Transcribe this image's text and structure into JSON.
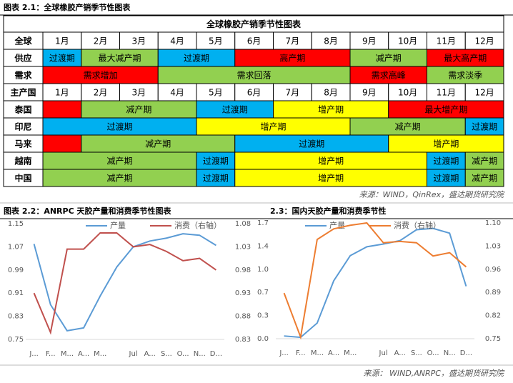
{
  "header": {
    "title": "图表 2.1：全球橡胶产销季节性图表"
  },
  "table": {
    "title": "全球橡胶产销季节性图表",
    "rows": [
      {
        "label": "全球",
        "cells": [
          {
            "text": "1月",
            "span": 1,
            "fill": "#ffffff"
          },
          {
            "text": "2月",
            "span": 1,
            "fill": "#ffffff"
          },
          {
            "text": "3月",
            "span": 1,
            "fill": "#ffffff"
          },
          {
            "text": "4月",
            "span": 1,
            "fill": "#ffffff"
          },
          {
            "text": "5月",
            "span": 1,
            "fill": "#ffffff"
          },
          {
            "text": "6月",
            "span": 1,
            "fill": "#ffffff"
          },
          {
            "text": "7月",
            "span": 1,
            "fill": "#ffffff"
          },
          {
            "text": "8月",
            "span": 1,
            "fill": "#ffffff"
          },
          {
            "text": "9月",
            "span": 1,
            "fill": "#ffffff"
          },
          {
            "text": "10月",
            "span": 1,
            "fill": "#ffffff"
          },
          {
            "text": "11月",
            "span": 1,
            "fill": "#ffffff"
          },
          {
            "text": "12月",
            "span": 1,
            "fill": "#ffffff"
          }
        ]
      },
      {
        "label": "供应",
        "cells": [
          {
            "text": "过渡期",
            "span": 1,
            "fill": "#00b0f0"
          },
          {
            "text": "最大减产期",
            "span": 2,
            "fill": "#92d050"
          },
          {
            "text": "过渡期",
            "span": 2,
            "fill": "#00b0f0"
          },
          {
            "text": "高产期",
            "span": 3,
            "fill": "#ff0000"
          },
          {
            "text": "减产期",
            "span": 2,
            "fill": "#92d050"
          },
          {
            "text": "最大高产期",
            "span": 2,
            "fill": "#ff0000"
          }
        ]
      },
      {
        "label": "需求",
        "cells": [
          {
            "text": "需求增加",
            "span": 3,
            "fill": "#ff0000"
          },
          {
            "text": "需求回落",
            "span": 5,
            "fill": "#92d050"
          },
          {
            "text": "需求高峰",
            "span": 2,
            "fill": "#ff0000"
          },
          {
            "text": "需求淡季",
            "span": 2,
            "fill": "#92d050"
          }
        ]
      },
      {
        "label": "主产国",
        "cells": [
          {
            "text": "1月",
            "span": 1,
            "fill": "#ffffff"
          },
          {
            "text": "2月",
            "span": 1,
            "fill": "#ffffff"
          },
          {
            "text": "3月",
            "span": 1,
            "fill": "#ffffff"
          },
          {
            "text": "4月",
            "span": 1,
            "fill": "#ffffff"
          },
          {
            "text": "5月",
            "span": 1,
            "fill": "#ffffff"
          },
          {
            "text": "6月",
            "span": 1,
            "fill": "#ffffff"
          },
          {
            "text": "7月",
            "span": 1,
            "fill": "#ffffff"
          },
          {
            "text": "8月",
            "span": 1,
            "fill": "#ffffff"
          },
          {
            "text": "9月",
            "span": 1,
            "fill": "#ffffff"
          },
          {
            "text": "10月",
            "span": 1,
            "fill": "#ffffff"
          },
          {
            "text": "11月",
            "span": 1,
            "fill": "#ffffff"
          },
          {
            "text": "12月",
            "span": 1,
            "fill": "#ffffff"
          }
        ]
      },
      {
        "label": "泰国",
        "cells": [
          {
            "text": "",
            "span": 1,
            "fill": "#ff0000"
          },
          {
            "text": "减产期",
            "span": 3,
            "fill": "#92d050"
          },
          {
            "text": "过渡期",
            "span": 2,
            "fill": "#00b0f0"
          },
          {
            "text": "增产期",
            "span": 3,
            "fill": "#ffff00"
          },
          {
            "text": "最大增产期",
            "span": 3,
            "fill": "#ff0000"
          }
        ]
      },
      {
        "label": "印尼",
        "cells": [
          {
            "text": "过渡期",
            "span": 4,
            "fill": "#00b0f0"
          },
          {
            "text": "增产期",
            "span": 4,
            "fill": "#ffff00"
          },
          {
            "text": "减产期",
            "span": 3,
            "fill": "#92d050"
          },
          {
            "text": "过渡期",
            "span": 1,
            "fill": "#00b0f0"
          }
        ]
      },
      {
        "label": "马来",
        "cells": [
          {
            "text": "",
            "span": 1,
            "fill": "#ff0000"
          },
          {
            "text": "减产期",
            "span": 4,
            "fill": "#92d050"
          },
          {
            "text": "过渡期",
            "span": 4,
            "fill": "#00b0f0"
          },
          {
            "text": "增产期",
            "span": 3,
            "fill": "#ffff00"
          }
        ]
      },
      {
        "label": "越南",
        "cells": [
          {
            "text": "减产期",
            "span": 4,
            "fill": "#92d050"
          },
          {
            "text": "过渡期",
            "span": 1,
            "fill": "#00b0f0"
          },
          {
            "text": "增产期",
            "span": 5,
            "fill": "#ffff00"
          },
          {
            "text": "过渡期",
            "span": 1,
            "fill": "#00b0f0"
          },
          {
            "text": "减产期",
            "span": 1,
            "fill": "#92d050"
          }
        ]
      },
      {
        "label": "中国",
        "cells": [
          {
            "text": "减产期",
            "span": 4,
            "fill": "#92d050"
          },
          {
            "text": "过渡期",
            "span": 1,
            "fill": "#00b0f0"
          },
          {
            "text": "增产期",
            "span": 5,
            "fill": "#ffff00"
          },
          {
            "text": "过渡期",
            "span": 1,
            "fill": "#00b0f0"
          },
          {
            "text": "减产期",
            "span": 1,
            "fill": "#92d050"
          }
        ]
      }
    ]
  },
  "source1": "来源：WIND，QinRex，盛达期货研究院",
  "chart_data": [
    {
      "type": "line",
      "title": "图表 2.2：ANRPC 天胶产量和消费季节性图表",
      "categories": [
        "J...",
        "F...",
        "M...",
        "A...",
        "M...",
        null,
        "Jul",
        "A...",
        "S...",
        "O...",
        "N...",
        "D..."
      ],
      "series": [
        {
          "name": "产量",
          "color": "#5b9bd5",
          "values": [
            1.08,
            0.87,
            0.78,
            0.79,
            0.9,
            1.0,
            1.07,
            1.09,
            1.1,
            1.115,
            1.11,
            1.075
          ]
        },
        {
          "name": "消费（右轴）",
          "color": "#c0504d",
          "axis": "y2",
          "values": [
            0.93,
            0.845,
            1.025,
            1.025,
            1.06,
            1.06,
            1.03,
            1.035,
            1.02,
            1.0,
            1.005,
            0.98
          ]
        }
      ],
      "ylim": [
        0.75,
        1.15
      ],
      "yticks": [
        0.75,
        0.83,
        0.91,
        0.99,
        1.07,
        1.15
      ],
      "y2lim": [
        0.83,
        1.08
      ],
      "y2ticks": [
        0.83,
        0.88,
        0.93,
        0.98,
        1.03,
        1.08
      ]
    },
    {
      "type": "line",
      "title": "2.3：国内天胶产量和消费季节性",
      "categories": [
        "J...",
        "F...",
        "M...",
        "A...",
        "M...",
        null,
        "Jul",
        "A...",
        "S...",
        "O...",
        "N...",
        "D..."
      ],
      "series": [
        {
          "name": "产量",
          "color": "#5b9bd5",
          "values": [
            0.04,
            0.02,
            0.23,
            0.85,
            1.22,
            1.35,
            1.39,
            1.44,
            1.6,
            1.62,
            1.55,
            0.77
          ]
        },
        {
          "name": "消费（右轴）",
          "color": "#ed7d31",
          "axis": "y2",
          "values": [
            0.888,
            0.755,
            1.05,
            1.082,
            1.093,
            1.1,
            1.04,
            1.044,
            1.04,
            1.0,
            1.01,
            0.967
          ]
        }
      ],
      "ylim": [
        0,
        1.7
      ],
      "yticks": [
        {
          "value": 0,
          "label": "0.0"
        },
        {
          "value": 0.34,
          "label": "0.3"
        },
        {
          "value": 0.68,
          "label": "0.7"
        },
        {
          "value": 1.02,
          "label": "1.0"
        },
        {
          "value": 1.36,
          "label": "1.4"
        },
        1.7
      ],
      "y2lim": [
        0.75,
        1.1
      ],
      "y2ticks": [
        0.75,
        0.82,
        0.89,
        0.96,
        1.03,
        {
          "value": 1.1,
          "label": "1.10"
        }
      ]
    }
  ],
  "source2": "来源：  WIND,ANRPC，盛达期货研究院"
}
